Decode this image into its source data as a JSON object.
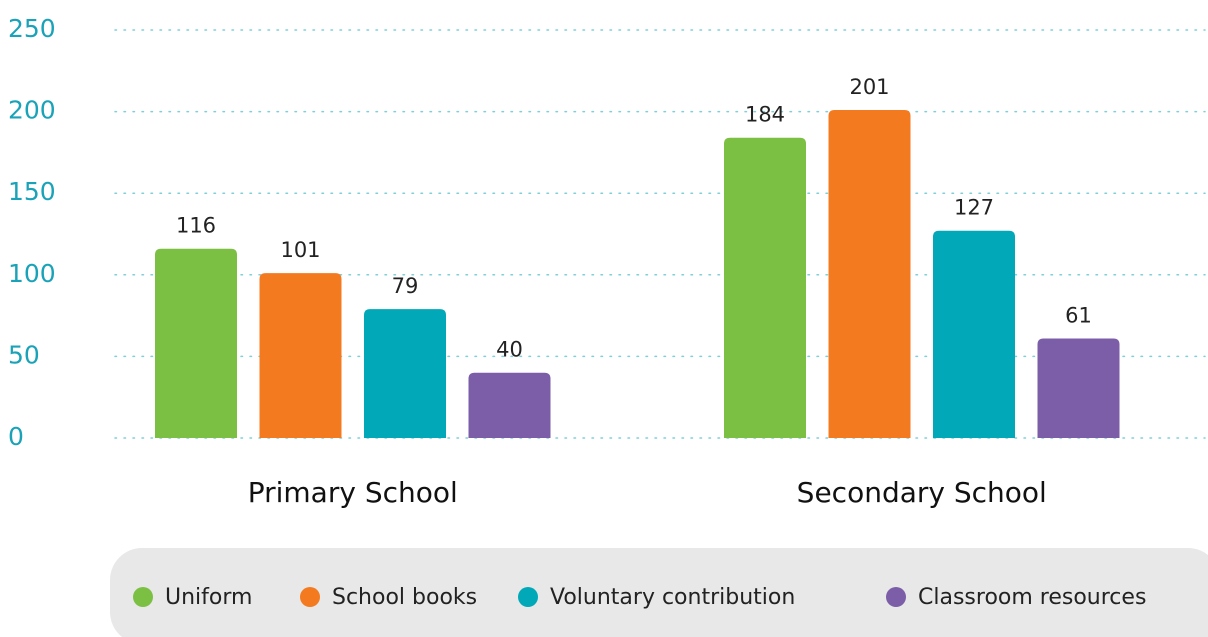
{
  "chart_data": {
    "type": "bar",
    "categories": [
      "Primary School",
      "Secondary School"
    ],
    "series": [
      {
        "name": "Uniform",
        "color": "#7bc043",
        "values": [
          116,
          184
        ]
      },
      {
        "name": "School books",
        "color": "#f47a20",
        "values": [
          101,
          201
        ]
      },
      {
        "name": "Voluntary contribution",
        "color": "#00a8b8",
        "values": [
          79,
          127
        ]
      },
      {
        "name": "Classroom resources",
        "color": "#7b5ea7",
        "values": [
          40,
          61
        ]
      }
    ],
    "ylim": [
      0,
      250
    ],
    "yticks": [
      0,
      50,
      100,
      150,
      200,
      250
    ],
    "grid": true,
    "legend": "bottom"
  }
}
